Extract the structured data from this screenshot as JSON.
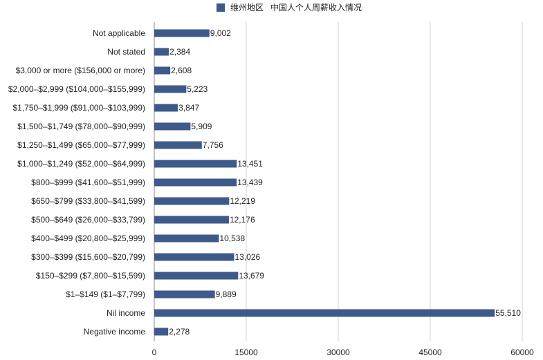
{
  "chart_data": {
    "type": "bar",
    "orientation": "horizontal",
    "title": "",
    "legend": [
      "维州地区   中国人个人周薪收入情况"
    ],
    "categories": [
      "Not applicable",
      "Not stated",
      "$3,000 or more ($156,000 or more)",
      "$2,000–$2,999 ($104,000–$155,999)",
      "$1,750–$1,999 ($91,000–$103,999)",
      "$1,500–$1,749 ($78,000–$90,999)",
      "$1,250–$1,499 ($65,000–$77,999)",
      "$1,000–$1,249 ($52,000–$64,999)",
      "$800–$999 ($41,600–$51,999)",
      "$650–$799 ($33,800–$41,599)",
      "$500–$649 ($26,000–$33,799)",
      "$400–$499 ($20,800–$25,999)",
      "$300–$399 ($15,600–$20,799)",
      "$150–$299 ($7,800–$15,599)",
      "$1–$149 ($1–$7,799)",
      "Nil income",
      "Negative income"
    ],
    "values": [
      9002,
      2384,
      2608,
      5223,
      3847,
      5909,
      7756,
      13451,
      13439,
      12219,
      12176,
      10538,
      13026,
      13679,
      9889,
      55510,
      2278
    ],
    "value_labels": [
      "9,002",
      "2,384",
      "2,608",
      "5,223",
      "3,847",
      "5,909",
      "7,756",
      "13,451",
      "13,439",
      "12,219",
      "12,176",
      "10,538",
      "13,026",
      "13,679",
      "9,889",
      "55,510",
      "2,278"
    ],
    "xlim": [
      0,
      60000
    ],
    "xticks": [
      0,
      15000,
      30000,
      45000,
      60000
    ],
    "xtick_labels": [
      "0",
      "15000",
      "30000",
      "45000",
      "60000"
    ],
    "xlabel": "",
    "ylabel": "",
    "grid": true,
    "legend_position": "top-center",
    "colors": {
      "bar": "#3d5a8a",
      "grid": "#d0d0d0",
      "axis": "#888888",
      "text": "#222222"
    }
  }
}
